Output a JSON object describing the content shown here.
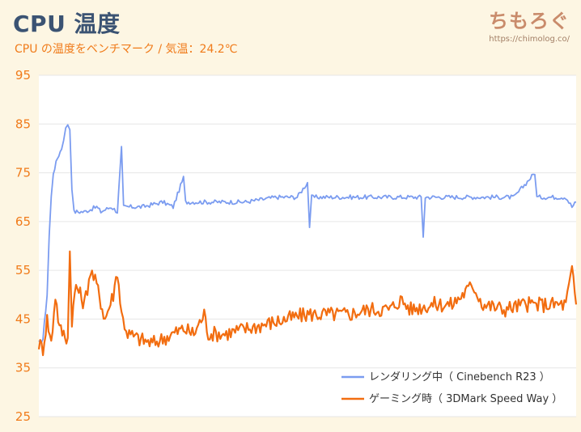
{
  "title": "CPU 温度",
  "subtitle": "CPU の温度をベンチマーク / 気温：24.2℃",
  "logo": {
    "main": "ちもろぐ",
    "url": "https://chimolog.co/"
  },
  "colors": {
    "background": "#fdf6e3",
    "plot_background": "#ffffff",
    "title": "#3b5373",
    "accent": "#f07b1a",
    "series_blue": "#7b9cf0",
    "series_orange": "#f26d10"
  },
  "chart_data": {
    "type": "line",
    "title": "CPU 温度",
    "subtitle": "CPU の温度をベンチマーク / 気温：24.2℃",
    "xlabel": "",
    "ylabel": "",
    "ylim": [
      25,
      95
    ],
    "y_ticks": [
      "95",
      "85",
      "75",
      "65",
      "55",
      "45",
      "35",
      "25"
    ],
    "grid": "horizontal",
    "legend_position": "bottom-right",
    "series": [
      {
        "name": "レンダリング中（ Cinebench R23 ）",
        "color": "#7b9cf0",
        "key_points": [
          [
            0,
            40
          ],
          [
            2,
            41
          ],
          [
            4,
            50
          ],
          [
            5,
            62
          ],
          [
            6,
            70
          ],
          [
            7,
            75
          ],
          [
            9,
            78
          ],
          [
            11,
            80
          ],
          [
            12,
            82
          ],
          [
            13,
            84
          ],
          [
            14,
            85
          ],
          [
            15,
            84
          ],
          [
            16,
            72
          ],
          [
            17,
            67
          ],
          [
            19,
            67
          ],
          [
            22,
            67
          ],
          [
            28,
            68
          ],
          [
            30,
            67
          ],
          [
            35,
            68
          ],
          [
            38,
            67
          ],
          [
            40,
            80
          ],
          [
            41,
            68
          ],
          [
            50,
            68
          ],
          [
            60,
            69
          ],
          [
            65,
            68
          ],
          [
            70,
            74
          ],
          [
            71,
            69
          ],
          [
            100,
            69
          ],
          [
            115,
            70
          ],
          [
            125,
            70
          ],
          [
            130,
            73
          ],
          [
            131,
            64
          ],
          [
            132,
            70
          ],
          [
            160,
            70
          ],
          [
            185,
            70
          ],
          [
            186,
            62
          ],
          [
            187,
            70
          ],
          [
            220,
            70
          ],
          [
            230,
            70
          ],
          [
            240,
            75
          ],
          [
            241,
            70
          ],
          [
            255,
            70
          ],
          [
            258,
            68
          ],
          [
            260,
            69
          ]
        ]
      },
      {
        "name": "ゲーミング時（ 3DMark Speed Way ）",
        "color": "#f26d10",
        "key_points": [
          [
            0,
            40
          ],
          [
            2,
            39
          ],
          [
            4,
            45
          ],
          [
            6,
            40
          ],
          [
            8,
            50
          ],
          [
            10,
            43
          ],
          [
            14,
            41
          ],
          [
            15,
            59
          ],
          [
            16,
            45
          ],
          [
            18,
            52
          ],
          [
            22,
            48
          ],
          [
            25,
            55
          ],
          [
            28,
            52
          ],
          [
            32,
            45
          ],
          [
            36,
            50
          ],
          [
            38,
            55
          ],
          [
            40,
            46
          ],
          [
            43,
            42
          ],
          [
            48,
            41
          ],
          [
            55,
            40
          ],
          [
            60,
            41
          ],
          [
            65,
            42
          ],
          [
            70,
            43
          ],
          [
            75,
            42
          ],
          [
            80,
            46
          ],
          [
            82,
            42
          ],
          [
            90,
            42
          ],
          [
            100,
            43
          ],
          [
            110,
            44
          ],
          [
            120,
            45
          ],
          [
            130,
            46
          ],
          [
            140,
            46
          ],
          [
            150,
            46
          ],
          [
            160,
            47
          ],
          [
            170,
            47
          ],
          [
            175,
            49
          ],
          [
            180,
            47
          ],
          [
            190,
            48
          ],
          [
            200,
            48
          ],
          [
            210,
            52
          ],
          [
            215,
            48
          ],
          [
            225,
            47
          ],
          [
            235,
            48
          ],
          [
            245,
            48
          ],
          [
            255,
            48
          ],
          [
            258,
            55
          ],
          [
            260,
            48
          ]
        ]
      }
    ]
  }
}
